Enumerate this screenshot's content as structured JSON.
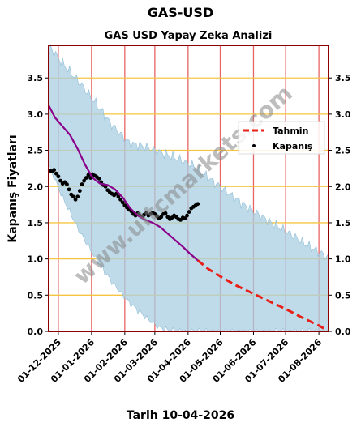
{
  "page": {
    "title": "GAS-USD",
    "footer": "Tarih 10-04-2026",
    "watermark": "www.ultcmarkets.com"
  },
  "chart_data": {
    "type": "line",
    "title": "GAS USD Yapay Zeka Analizi",
    "xlabel": "",
    "ylabel": "Kapanış Fiyatları",
    "x_ticks": [
      "01-12-2025",
      "01-01-2026",
      "01-02-2026",
      "01-03-2026",
      "01-04-2026",
      "01-05-2026",
      "01-06-2026",
      "01-07-2026",
      "01-08-2026"
    ],
    "y_ticks": [
      "0.0",
      "0.5",
      "1.0",
      "1.5",
      "2.0",
      "2.5",
      "3.0",
      "3.5"
    ],
    "xlim": [
      "2025-11-22",
      "2026-08-10"
    ],
    "ylim": [
      0,
      3.95
    ],
    "grid": {
      "horizontal": true,
      "vertical": true
    },
    "legend_position": "right",
    "colors": {
      "band": "#a9cfe3",
      "band_edge": "#8fbdd6",
      "forecast": "#e8201a",
      "close": "#000000",
      "ma": "#8b008b",
      "hgrid": "#f5c542",
      "vgrid": "#e86464",
      "frame": "#8b0000"
    },
    "series": [
      {
        "name": "Tahmin",
        "style": "dashed",
        "points": [
          [
            "2026-04-10",
            0.98
          ],
          [
            "2026-04-20",
            0.86
          ],
          [
            "2026-05-01",
            0.76
          ],
          [
            "2026-05-15",
            0.64
          ],
          [
            "2026-06-01",
            0.52
          ],
          [
            "2026-06-15",
            0.42
          ],
          [
            "2026-07-01",
            0.31
          ],
          [
            "2026-07-15",
            0.2
          ],
          [
            "2026-08-01",
            0.08
          ],
          [
            "2026-08-08",
            0.02
          ]
        ]
      },
      {
        "name": "Kapanış",
        "style": "points",
        "points": [
          [
            "2025-11-23",
            2.22
          ],
          [
            "2025-11-25",
            2.21
          ],
          [
            "2025-11-27",
            2.23
          ],
          [
            "2025-11-29",
            2.18
          ],
          [
            "2025-12-01",
            2.14
          ],
          [
            "2025-12-03",
            2.08
          ],
          [
            "2025-12-05",
            2.04
          ],
          [
            "2025-12-07",
            2.06
          ],
          [
            "2025-12-09",
            2.03
          ],
          [
            "2025-12-11",
            1.96
          ],
          [
            "2025-12-13",
            1.89
          ],
          [
            "2025-12-15",
            1.86
          ],
          [
            "2025-12-17",
            1.82
          ],
          [
            "2025-12-19",
            1.86
          ],
          [
            "2025-12-21",
            1.94
          ],
          [
            "2025-12-23",
            2.03
          ],
          [
            "2025-12-25",
            2.08
          ],
          [
            "2025-12-27",
            2.12
          ],
          [
            "2025-12-29",
            2.16
          ],
          [
            "2025-12-31",
            2.12
          ],
          [
            "2026-01-02",
            2.17
          ],
          [
            "2026-01-04",
            2.15
          ],
          [
            "2026-01-06",
            2.13
          ],
          [
            "2026-01-08",
            2.11
          ],
          [
            "2026-01-10",
            2.06
          ],
          [
            "2026-01-12",
            2.02
          ],
          [
            "2026-01-14",
            2.0
          ],
          [
            "2026-01-16",
            1.95
          ],
          [
            "2026-01-18",
            1.92
          ],
          [
            "2026-01-20",
            1.9
          ],
          [
            "2026-01-22",
            1.88
          ],
          [
            "2026-01-24",
            1.9
          ],
          [
            "2026-01-26",
            1.86
          ],
          [
            "2026-01-28",
            1.82
          ],
          [
            "2026-01-30",
            1.78
          ],
          [
            "2026-02-01",
            1.74
          ],
          [
            "2026-02-03",
            1.71
          ],
          [
            "2026-02-05",
            1.68
          ],
          [
            "2026-02-07",
            1.66
          ],
          [
            "2026-02-09",
            1.62
          ],
          [
            "2026-02-11",
            1.6
          ],
          [
            "2026-02-13",
            1.63
          ],
          [
            "2026-02-15",
            1.6
          ],
          [
            "2026-02-17",
            1.58
          ],
          [
            "2026-02-19",
            1.61
          ],
          [
            "2026-02-21",
            1.63
          ],
          [
            "2026-02-23",
            1.6
          ],
          [
            "2026-02-25",
            1.62
          ],
          [
            "2026-02-27",
            1.64
          ],
          [
            "2026-03-01",
            1.62
          ],
          [
            "2026-03-03",
            1.59
          ],
          [
            "2026-03-05",
            1.56
          ],
          [
            "2026-03-07",
            1.58
          ],
          [
            "2026-03-09",
            1.62
          ],
          [
            "2026-03-11",
            1.63
          ],
          [
            "2026-03-13",
            1.58
          ],
          [
            "2026-03-15",
            1.55
          ],
          [
            "2026-03-17",
            1.57
          ],
          [
            "2026-03-19",
            1.6
          ],
          [
            "2026-03-21",
            1.58
          ],
          [
            "2026-03-23",
            1.55
          ],
          [
            "2026-03-25",
            1.54
          ],
          [
            "2026-03-27",
            1.57
          ],
          [
            "2026-03-29",
            1.56
          ],
          [
            "2026-03-31",
            1.6
          ],
          [
            "2026-04-02",
            1.65
          ],
          [
            "2026-04-04",
            1.7
          ],
          [
            "2026-04-06",
            1.72
          ],
          [
            "2026-04-08",
            1.74
          ],
          [
            "2026-04-10",
            1.76
          ]
        ]
      },
      {
        "name": "",
        "style": "solid",
        "points": [
          [
            "2025-11-22",
            3.12
          ],
          [
            "2025-11-28",
            2.95
          ],
          [
            "2025-12-05",
            2.83
          ],
          [
            "2025-12-12",
            2.71
          ],
          [
            "2025-12-19",
            2.52
          ],
          [
            "2025-12-26",
            2.3
          ],
          [
            "2026-01-02",
            2.12
          ],
          [
            "2026-01-09",
            2.04
          ],
          [
            "2026-01-16",
            2.02
          ],
          [
            "2026-01-23",
            1.96
          ],
          [
            "2026-01-30",
            1.85
          ],
          [
            "2026-02-06",
            1.7
          ],
          [
            "2026-02-13",
            1.6
          ],
          [
            "2026-02-20",
            1.54
          ],
          [
            "2026-02-27",
            1.5
          ],
          [
            "2026-03-06",
            1.44
          ],
          [
            "2026-03-13",
            1.35
          ],
          [
            "2026-03-20",
            1.26
          ],
          [
            "2026-03-27",
            1.17
          ],
          [
            "2026-04-03",
            1.07
          ],
          [
            "2026-04-10",
            0.98
          ]
        ]
      }
    ],
    "band": {
      "upper": [
        [
          "2025-11-22",
          3.95
        ],
        [
          "2025-12-05",
          3.7
        ],
        [
          "2025-12-20",
          3.45
        ],
        [
          "2026-01-05",
          3.15
        ],
        [
          "2026-01-20",
          2.85
        ],
        [
          "2026-02-05",
          2.6
        ],
        [
          "2026-02-20",
          2.55
        ],
        [
          "2026-03-05",
          2.48
        ],
        [
          "2026-03-20",
          2.4
        ],
        [
          "2026-04-05",
          2.3
        ],
        [
          "2026-04-20",
          2.12
        ],
        [
          "2026-05-05",
          1.95
        ],
        [
          "2026-05-20",
          1.78
        ],
        [
          "2026-06-05",
          1.62
        ],
        [
          "2026-06-20",
          1.48
        ],
        [
          "2026-07-05",
          1.35
        ],
        [
          "2026-07-20",
          1.2
        ],
        [
          "2026-08-10",
          1.02
        ]
      ],
      "lower": [
        [
          "2025-11-22",
          2.3
        ],
        [
          "2025-12-05",
          1.85
        ],
        [
          "2025-12-20",
          1.4
        ],
        [
          "2026-01-05",
          1.0
        ],
        [
          "2026-01-20",
          0.68
        ],
        [
          "2026-02-05",
          0.4
        ],
        [
          "2026-02-20",
          0.2
        ],
        [
          "2026-03-05",
          0.05
        ],
        [
          "2026-03-20",
          0.0
        ],
        [
          "2026-08-10",
          0.0
        ]
      ]
    }
  }
}
